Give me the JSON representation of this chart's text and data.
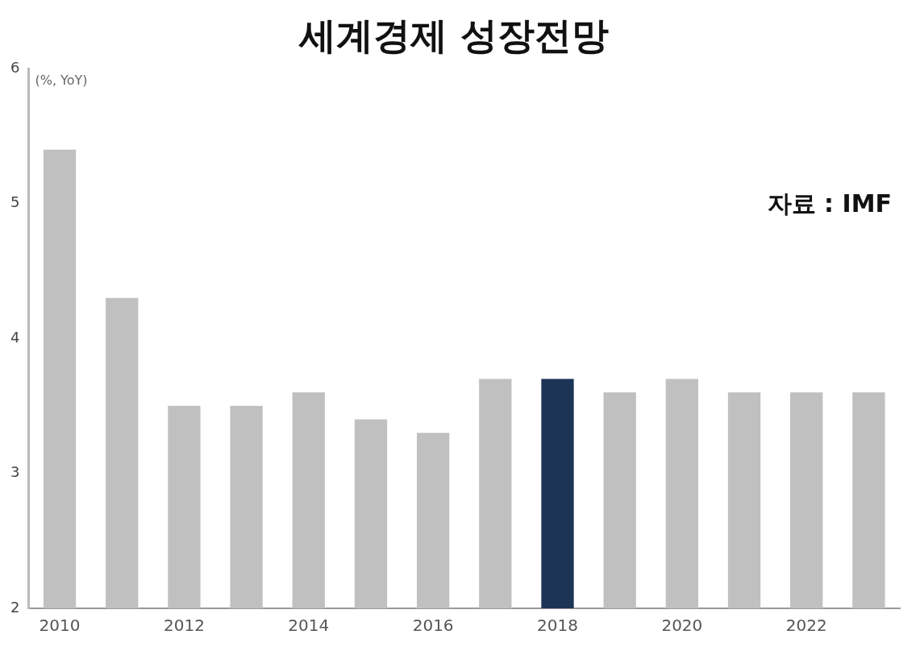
{
  "chart_data": {
    "type": "bar",
    "title": "세계경제 성장전망",
    "ylabel": "(%, YoY)",
    "annotations": [
      "자료 : IMF"
    ],
    "categories": [
      "2010",
      null,
      "2012",
      null,
      "2014",
      null,
      "2016",
      null,
      "2018",
      null,
      "2020",
      null,
      "2022",
      null
    ],
    "values": [
      5.4,
      4.3,
      3.5,
      3.5,
      3.6,
      3.4,
      3.3,
      3.7,
      3.7,
      3.6,
      3.7,
      3.6,
      3.6,
      3.6
    ],
    "colors": [
      "#c0c0c0",
      "#c0c0c0",
      "#c0c0c0",
      "#c0c0c0",
      "#c0c0c0",
      "#c0c0c0",
      "#c0c0c0",
      "#c0c0c0",
      "#1c3557",
      "#c0c0c0",
      "#c0c0c0",
      "#c0c0c0",
      "#c0c0c0",
      "#c0c0c0"
    ],
    "ylim": [
      2,
      6
    ],
    "yticks": [
      2,
      3,
      4,
      5,
      6
    ],
    "grid": false
  }
}
